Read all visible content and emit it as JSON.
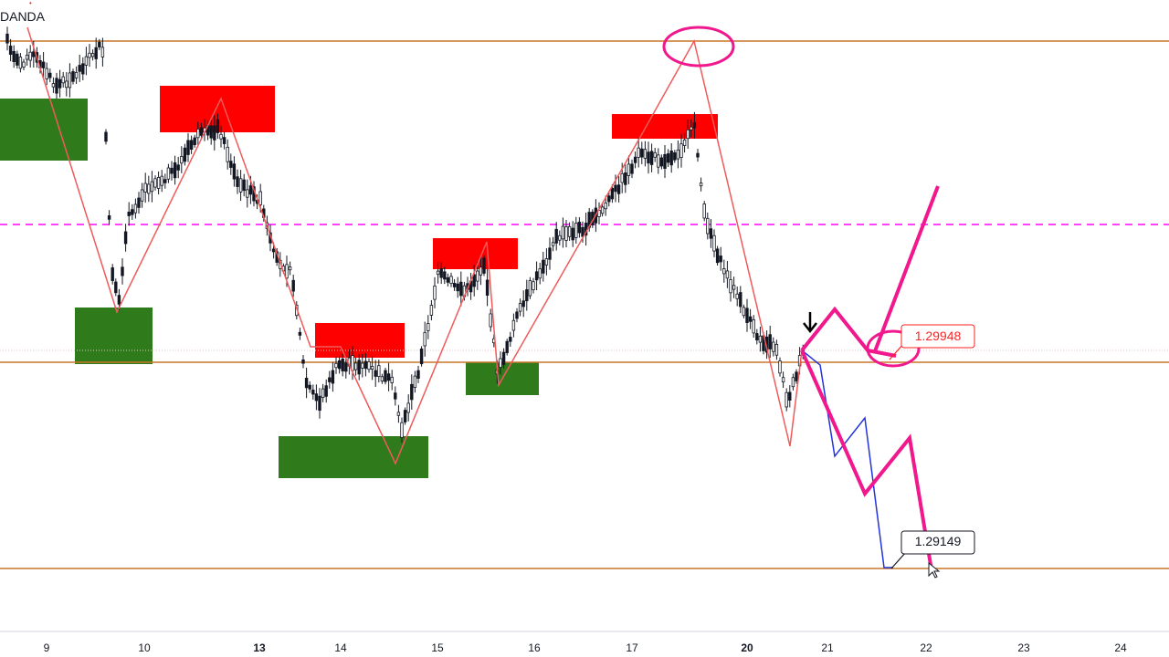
{
  "chart": {
    "brand": "DANDA",
    "colors": {
      "background": "#ffffff",
      "support_zone": "#2f7a1a",
      "resistance_zone": "#ff0000",
      "level_line": "#c9772a",
      "dashed_level": "#ff44ff",
      "zigzag": "#f05a5a",
      "projection": "#f0188c",
      "projection_alt": "#2233dd",
      "candle": "#131722",
      "alert_text": "#ff2222"
    },
    "labels": {
      "upper_level": "1.29948",
      "lower_level": "1.29149"
    },
    "icons": [
      "arrow-down-icon",
      "cursor-icon"
    ]
  },
  "chart_data": {
    "type": "line",
    "title": "",
    "xlabel": "",
    "ylabel": "",
    "x_ticks": [
      {
        "label": "9",
        "bold": false
      },
      {
        "label": "10",
        "bold": false
      },
      {
        "label": "13",
        "bold": true
      },
      {
        "label": "14",
        "bold": false
      },
      {
        "label": "15",
        "bold": false
      },
      {
        "label": "16",
        "bold": false
      },
      {
        "label": "17",
        "bold": false
      },
      {
        "label": "20",
        "bold": true
      },
      {
        "label": "21",
        "bold": false
      },
      {
        "label": "22",
        "bold": false
      },
      {
        "label": "23",
        "bold": false
      },
      {
        "label": "24",
        "bold": false
      }
    ],
    "horizontal_levels": [
      1.29948,
      1.29149
    ],
    "series": [
      {
        "x": [
          "9",
          "10",
          "10",
          "13",
          "13",
          "14",
          "14",
          "15",
          "15",
          "16",
          "16",
          "17",
          "17",
          "20",
          "20",
          "21",
          "21",
          "22",
          "22"
        ],
        "values": [
          1.314,
          1.3095,
          1.2985,
          1.314,
          1.3135,
          1.3045,
          1.2975,
          1.308,
          1.2955,
          1.3045,
          1.2965,
          1.313,
          1.311,
          1.304,
          1.295,
          1.3,
          1.292,
          1.296,
          1.2915
        ]
      }
    ],
    "grid": false
  }
}
